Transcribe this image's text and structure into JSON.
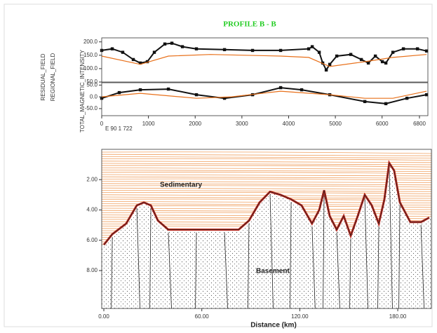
{
  "chart_data": [
    {
      "type": "line",
      "title": "PROFILE B - B",
      "y_labels": [
        "RESIDUAL_FIELD",
        "REGIONAL_FIELD",
        "TOTAL_MAGNETIC_INTENSITY"
      ],
      "xlim": [
        0,
        6980
      ],
      "ylim": [
        50,
        215
      ],
      "yticks": [
        {
          "value": 50,
          "label": "50.0"
        },
        {
          "value": 100,
          "label": "100.0"
        },
        {
          "value": 150,
          "label": "150.0"
        },
        {
          "value": 200,
          "label": "200.0"
        }
      ],
      "series": [
        {
          "color": "#111111",
          "marker": "square",
          "x": [
            0,
            225,
            450,
            676,
            826,
            976,
            1126,
            1351,
            1502,
            1727,
            2027,
            2628,
            3228,
            3829,
            4429,
            4505,
            4655,
            4730,
            4805,
            4880,
            5030,
            5330,
            5556,
            5706,
            5856,
            6006,
            6081,
            6231,
            6456,
            6757,
            6952
          ],
          "values": [
            168,
            174,
            161,
            134,
            121,
            126,
            161,
            192,
            195,
            182,
            174,
            171,
            168,
            168,
            174,
            182,
            161,
            121,
            95,
            116,
            147,
            153,
            134,
            121,
            147,
            126,
            121,
            161,
            174,
            174,
            166
          ]
        },
        {
          "color": "#e8701a",
          "x": [
            0,
            826,
            1427,
            2327,
            3829,
            4429,
            4880,
            5631,
            6231,
            6952
          ],
          "values": [
            147,
            116,
            147,
            153,
            147,
            142,
            108,
            126,
            142,
            153
          ]
        }
      ]
    },
    {
      "type": "line",
      "note": "E 90 1 722",
      "xlim": [
        0,
        6980
      ],
      "ylim": [
        -80,
        60
      ],
      "yticks": [
        {
          "value": -50,
          "label": "-50.0"
        },
        {
          "value": 0,
          "label": "0.0"
        },
        {
          "value": 50,
          "label": "50.0"
        }
      ],
      "xticks": [
        0,
        1000,
        2000,
        3000,
        4000,
        5000,
        6000,
        6800
      ],
      "series": [
        {
          "color": "#111111",
          "marker": "square",
          "x": [
            0,
            375,
            826,
            1427,
            2027,
            2628,
            3228,
            3829,
            4279,
            4880,
            5631,
            6081,
            6532,
            6952
          ],
          "values": [
            -6,
            18,
            30,
            33,
            9,
            -6,
            9,
            39,
            30,
            9,
            -20,
            -29,
            -6,
            9
          ]
        },
        {
          "color": "#e8701a",
          "x": [
            0,
            826,
            2027,
            2778,
            3829,
            4880,
            5631,
            6231,
            6952
          ],
          "values": [
            0,
            15,
            -6,
            0,
            24,
            9,
            -6,
            -6,
            24
          ]
        }
      ]
    },
    {
      "type": "area",
      "x_label": "Distance (km)",
      "annotations": [
        "Sedimentary",
        "Basement"
      ],
      "xlim": [
        -1.3,
        200.6
      ],
      "ylim": [
        0,
        10.5
      ],
      "y_inverted": true,
      "color": "#c0281e",
      "xticks": [
        {
          "value": 0,
          "label": "0.00"
        },
        {
          "value": 60,
          "label": "60.00"
        },
        {
          "value": 120,
          "label": "120.00"
        },
        {
          "value": 180,
          "label": "180.00"
        }
      ],
      "yticks": [
        {
          "value": 2,
          "label": "2.00"
        },
        {
          "value": 4,
          "label": "4.00"
        },
        {
          "value": 6,
          "label": "6.00"
        },
        {
          "value": 8,
          "label": "8.00"
        }
      ],
      "x": [
        0,
        5.2,
        13.7,
        20.2,
        24.5,
        28.8,
        33.1,
        39.5,
        48.1,
        56.7,
        65.3,
        73.9,
        82.5,
        88.9,
        95.4,
        101.8,
        108.2,
        114.7,
        121.1,
        127.5,
        131.9,
        134.9,
        138.3,
        142.6,
        146.9,
        151.2,
        155.5,
        159.8,
        164.1,
        168.4,
        171.8,
        174.8,
        177.8,
        181.3,
        187.7,
        194.2,
        199.3
      ],
      "values": [
        6.3,
        5.6,
        4.9,
        3.7,
        3.5,
        3.7,
        4.7,
        5.3,
        5.3,
        5.3,
        5.3,
        5.3,
        5.3,
        4.7,
        3.5,
        2.8,
        3.0,
        3.3,
        3.7,
        4.9,
        4.0,
        2.7,
        4.4,
        5.3,
        4.4,
        5.7,
        4.4,
        3.0,
        3.7,
        4.9,
        3.3,
        0.9,
        1.4,
        3.5,
        4.8,
        4.8,
        4.5
      ]
    }
  ]
}
